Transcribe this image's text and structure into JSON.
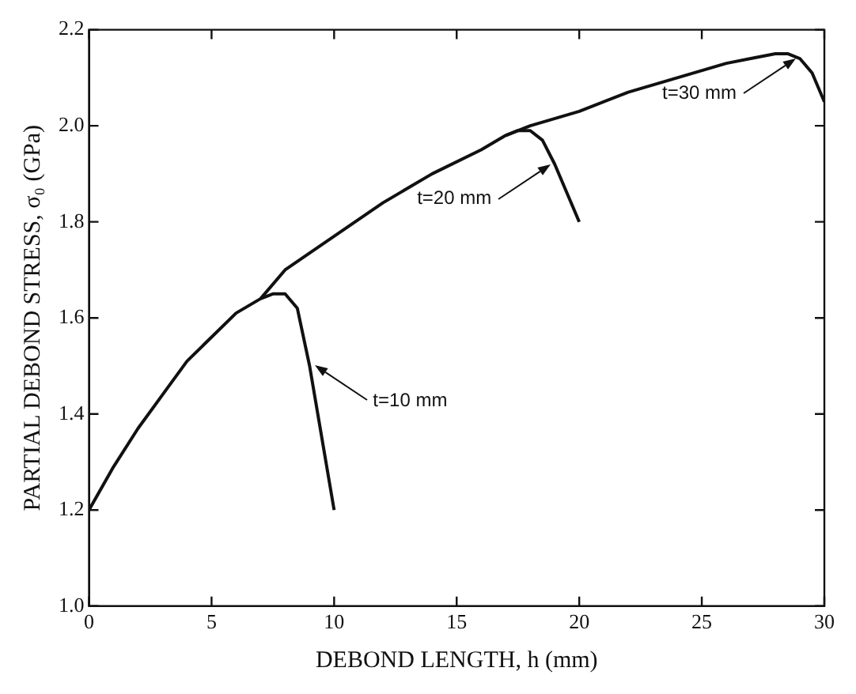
{
  "chart_data": {
    "type": "line",
    "xlabel": "DEBOND LENGTH, h (mm)",
    "ylabel": "PARTIAL DEBOND STRESS, σ₀ (GPa)",
    "series": [
      {
        "color": "#111111",
        "x": [
          0,
          1,
          2,
          3,
          4,
          5,
          6,
          7,
          7.5,
          8,
          8.5,
          9,
          9.5,
          10
        ],
        "values": [
          1.2,
          1.29,
          1.37,
          1.44,
          1.51,
          1.56,
          1.61,
          1.64,
          1.65,
          1.65,
          1.62,
          1.5,
          1.35,
          1.2
        ]
      },
      {
        "color": "#111111",
        "x": [
          7,
          8,
          10,
          12,
          14,
          16,
          17,
          17.5,
          18,
          18.5,
          19,
          19.5,
          20
        ],
        "values": [
          1.64,
          1.7,
          1.77,
          1.84,
          1.9,
          1.95,
          1.98,
          1.99,
          1.99,
          1.97,
          1.92,
          1.86,
          1.8
        ]
      },
      {
        "color": "#111111",
        "x": [
          17,
          18,
          20,
          22,
          24,
          26,
          27,
          28,
          28.5,
          29,
          29.5,
          30
        ],
        "values": [
          1.98,
          2.0,
          2.03,
          2.07,
          2.1,
          2.13,
          2.14,
          2.15,
          2.15,
          2.14,
          2.11,
          2.05
        ]
      }
    ],
    "annotations": [
      "t=10 mm",
      "t=20 mm",
      "t=30 mm"
    ],
    "xlim": [
      0,
      30
    ],
    "xticks": [
      0,
      5,
      10,
      15,
      20,
      25,
      30
    ],
    "ylim": [
      1,
      2.2
    ],
    "yticks": [
      {
        "value": 1,
        "label": "1.0"
      },
      {
        "value": 1.2,
        "label": "1.2"
      },
      {
        "value": 1.4,
        "label": "1.4"
      },
      {
        "value": 1.6,
        "label": "1.6"
      },
      {
        "value": 1.8,
        "label": "1.8"
      },
      {
        "value": 2,
        "label": "2.0"
      },
      {
        "value": 2.2,
        "label": "2.2"
      }
    ],
    "grid": false,
    "legend": false,
    "marker": "none",
    "line_style": "solid"
  }
}
